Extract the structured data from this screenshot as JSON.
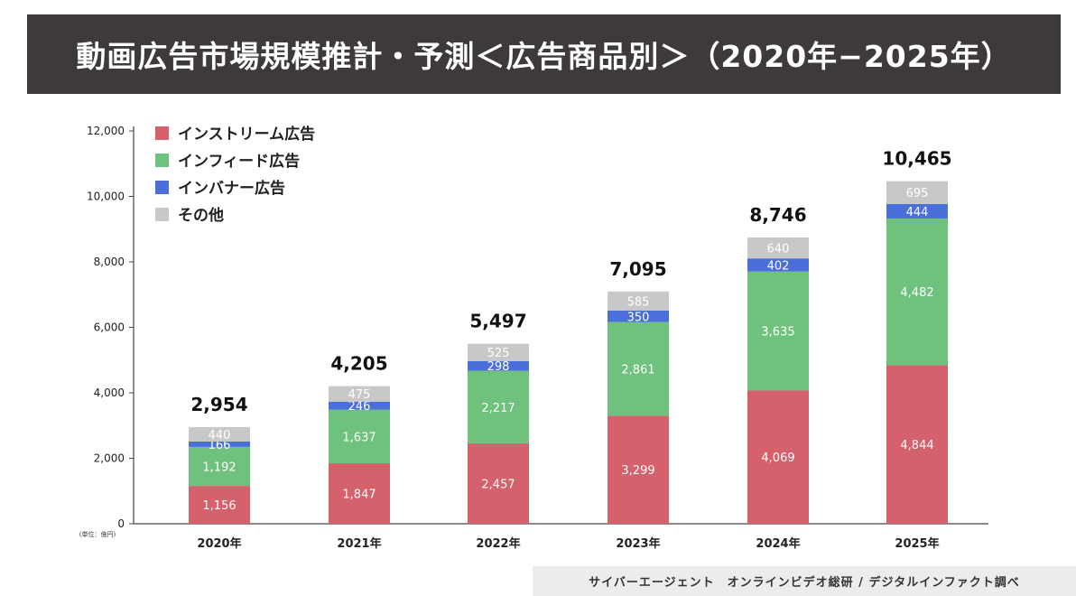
{
  "header": {
    "title": "動画広告市場規模推計・予測＜広告商品別＞（2020年−2025年）"
  },
  "footer": {
    "credit": "サイバーエージェント　オンラインビデオ総研 / デジタルインファクト調べ"
  },
  "chart_data": {
    "type": "bar",
    "stacked": true,
    "unit_label": "(単位：億円)",
    "categories": [
      "2020年",
      "2021年",
      "2022年",
      "2023年",
      "2024年",
      "2025年"
    ],
    "series": [
      {
        "name": "インストリーム広告",
        "color": "#d4616b",
        "values": [
          1156,
          1847,
          2457,
          3299,
          4069,
          4844
        ]
      },
      {
        "name": "インフィード広告",
        "color": "#6fc27e",
        "values": [
          1192,
          1637,
          2217,
          2861,
          3635,
          4482
        ]
      },
      {
        "name": "インバナー広告",
        "color": "#4a6fd8",
        "values": [
          166,
          246,
          298,
          350,
          402,
          444
        ]
      },
      {
        "name": "その他",
        "color": "#c8c8c8",
        "values": [
          440,
          475,
          525,
          585,
          640,
          695
        ]
      }
    ],
    "totals": [
      "2,954",
      "4,205",
      "5,497",
      "7,095",
      "8,746",
      "10,465"
    ],
    "ylim": [
      0,
      12000
    ],
    "yticks": [
      "0",
      "2,000",
      "4,000",
      "6,000",
      "8,000",
      "10,000",
      "12,000"
    ],
    "legend_position": "top-left",
    "grid": false
  }
}
